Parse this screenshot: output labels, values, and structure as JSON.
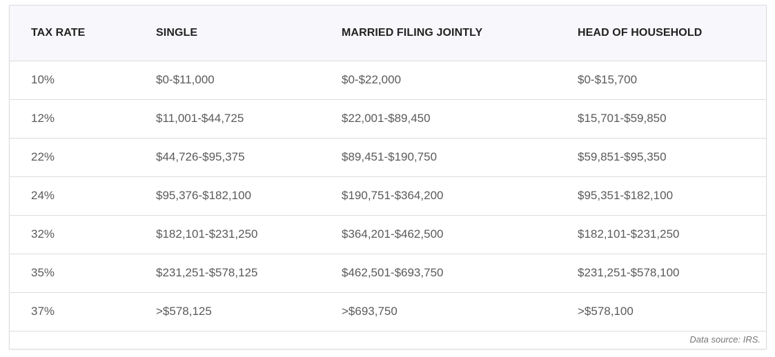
{
  "table": {
    "headers": [
      "TAX RATE",
      "SINGLE",
      "MARRIED FILING JOINTLY",
      "HEAD OF HOUSEHOLD"
    ],
    "rows": [
      [
        "10%",
        "$0-$11,000",
        "$0-$22,000",
        "$0-$15,700"
      ],
      [
        "12%",
        "$11,001-$44,725",
        "$22,001-$89,450",
        "$15,701-$59,850"
      ],
      [
        "22%",
        "$44,726-$95,375",
        "$89,451-$190,750",
        "$59,851-$95,350"
      ],
      [
        "24%",
        "$95,376-$182,100",
        "$190,751-$364,200",
        "$95,351-$182,100"
      ],
      [
        "32%",
        "$182,101-$231,250",
        "$364,201-$462,500",
        "$182,101-$231,250"
      ],
      [
        "35%",
        "$231,251-$578,125",
        "$462,501-$693,750",
        "$231,251-$578,100"
      ],
      [
        "37%",
        ">$578,125",
        ">$693,750",
        ">$578,100"
      ]
    ]
  },
  "footer": {
    "source": "Data source: IRS."
  }
}
